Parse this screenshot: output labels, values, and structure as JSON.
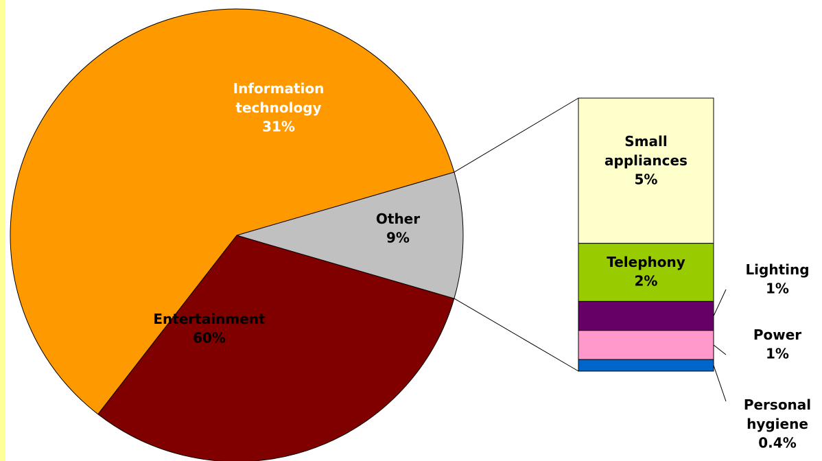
{
  "chart_data": {
    "type": "bar-of-pie",
    "pie": {
      "categories": [
        "Information technology",
        "Other",
        "Entertainment"
      ],
      "values": [
        31,
        9,
        60
      ],
      "value_labels": [
        "31%",
        "9%",
        "60%"
      ],
      "colors": [
        "#800000",
        "#c0c0c0",
        "#ff9900"
      ]
    },
    "bar": {
      "categories": [
        "Small appliances",
        "Telephony",
        "Lighting",
        "Power",
        "Personal hygiene"
      ],
      "values": [
        5,
        2,
        1,
        1,
        0.4
      ],
      "value_labels": [
        "5%",
        "2%",
        "1%",
        "1%",
        "0.4%"
      ],
      "colors": [
        "#ffffcc",
        "#99cc00",
        "#660066",
        "#ff99cc",
        "#0066cc"
      ]
    }
  }
}
